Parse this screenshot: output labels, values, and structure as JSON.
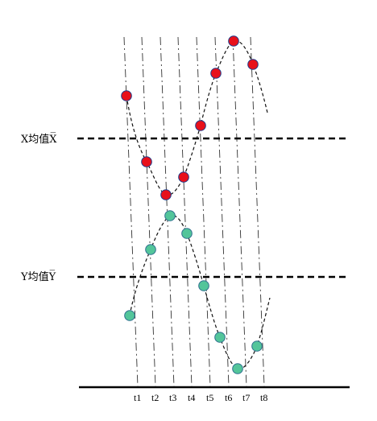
{
  "labels": {
    "x_mean": "X均值X̅",
    "y_mean": "Y均值Y̅"
  },
  "time_ticks": [
    "t1",
    "t2",
    "t3",
    "t4",
    "t5",
    "t6",
    "t7",
    "t8"
  ],
  "series": [
    {
      "color": "#e8101a",
      "stroke": "#1d3c8c"
    },
    {
      "color": "#53c59a",
      "stroke": "#2f6f8f"
    }
  ]
}
